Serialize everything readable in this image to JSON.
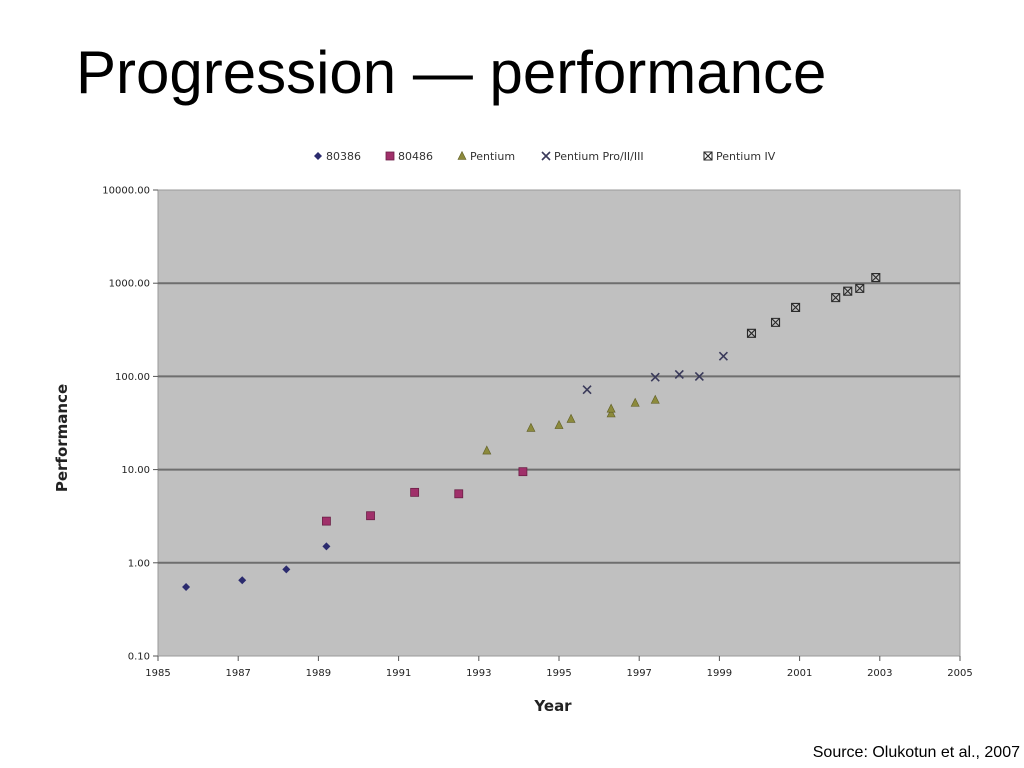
{
  "slide": {
    "title": "Progression — performance",
    "source": "Source: Olukotun et al., 2007"
  },
  "chart_data": {
    "type": "scatter",
    "title": "",
    "xlabel": "Year",
    "ylabel": "Performance",
    "x_scale": "linear",
    "y_scale": "log",
    "xlim": [
      1985,
      2005
    ],
    "ylim": [
      0.1,
      10000
    ],
    "x_ticks": [
      "1985",
      "1987",
      "1989",
      "1991",
      "1993",
      "1995",
      "1997",
      "1999",
      "2001",
      "2003",
      "2005"
    ],
    "y_ticks": [
      "0.10",
      "1.00",
      "10.00",
      "100.00",
      "1000.00",
      "10000.00"
    ],
    "grid": "horizontal",
    "legend_position": "top",
    "plot_background": "#c0c0c0",
    "series": [
      {
        "name": "80386",
        "marker": "diamond",
        "color": "#2b2b6e",
        "points": [
          [
            1985.7,
            0.55
          ],
          [
            1987.1,
            0.65
          ],
          [
            1988.2,
            0.85
          ],
          [
            1989.2,
            1.5
          ]
        ]
      },
      {
        "name": "80486",
        "marker": "square",
        "color": "#a0306a",
        "points": [
          [
            1989.2,
            2.8
          ],
          [
            1990.3,
            3.2
          ],
          [
            1991.4,
            5.7
          ],
          [
            1992.5,
            5.5
          ],
          [
            1994.1,
            9.5
          ]
        ]
      },
      {
        "name": "Pentium",
        "marker": "triangle",
        "color": "#8c8a3c",
        "points": [
          [
            1993.2,
            16
          ],
          [
            1994.3,
            28
          ],
          [
            1995.0,
            30
          ],
          [
            1995.3,
            35
          ],
          [
            1996.3,
            40
          ],
          [
            1996.3,
            45
          ],
          [
            1996.9,
            52
          ],
          [
            1997.4,
            56
          ]
        ]
      },
      {
        "name": "Pentium Pro/II/III",
        "marker": "x",
        "color": "#3a3a5a",
        "points": [
          [
            1995.7,
            72
          ],
          [
            1997.4,
            98
          ],
          [
            1998.0,
            105
          ],
          [
            1998.5,
            100
          ],
          [
            1999.1,
            165
          ]
        ]
      },
      {
        "name": "Pentium IV",
        "marker": "x-box",
        "color": "#2a2a2a",
        "points": [
          [
            1999.8,
            290
          ],
          [
            2000.4,
            380
          ],
          [
            2000.9,
            550
          ],
          [
            2001.9,
            700
          ],
          [
            2002.2,
            820
          ],
          [
            2002.5,
            880
          ],
          [
            2002.9,
            1150
          ]
        ]
      }
    ]
  }
}
